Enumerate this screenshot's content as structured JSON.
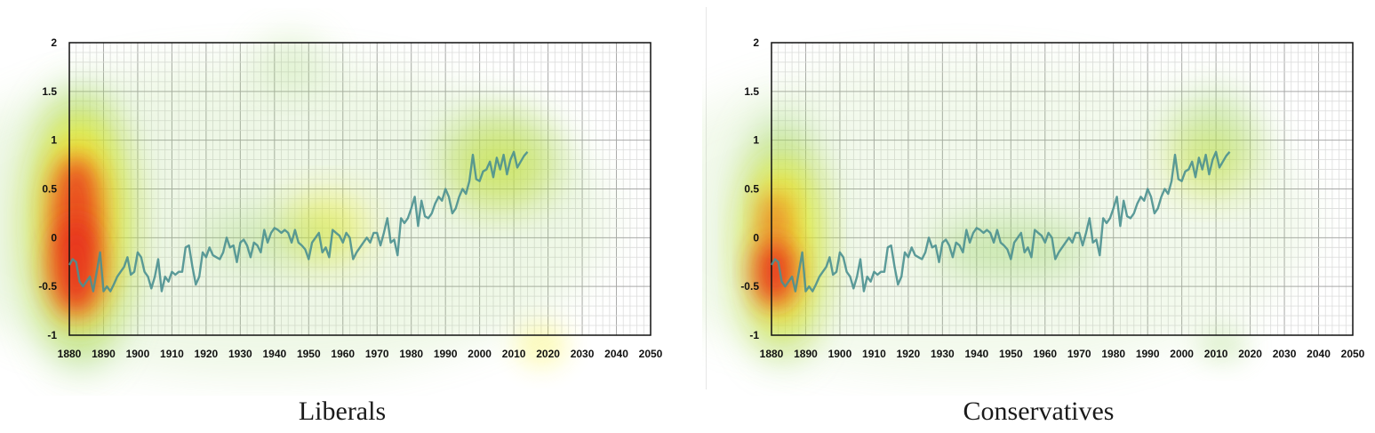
{
  "chart_data": [
    {
      "type": "line",
      "caption": "Liberals",
      "xlim": [
        1880,
        2050
      ],
      "ylim": [
        -1,
        2
      ],
      "xticks": [
        "1880",
        "1890",
        "1900",
        "1910",
        "1920",
        "1930",
        "1940",
        "1950",
        "1960",
        "1970",
        "1980",
        "1990",
        "2000",
        "2010",
        "2020",
        "2030",
        "2040",
        "2050"
      ],
      "yticks": [
        "-1",
        "-0.5",
        "0",
        "0.5",
        "1",
        "1.5",
        "2"
      ],
      "grid": true,
      "overlay": "attention heatmap",
      "line_color": "#4a9090",
      "heatmap_colors": {
        "high": "#e8321e",
        "mid": "#f7f020",
        "low": "#9cd46a"
      },
      "series": [
        {
          "x": [
            1880,
            1881,
            1882,
            1883,
            1884,
            1885,
            1886,
            1887,
            1888,
            1889,
            1890,
            1891,
            1892,
            1893,
            1894,
            1895,
            1896,
            1897,
            1898,
            1899,
            1900,
            1901,
            1902,
            1903,
            1904,
            1905,
            1906,
            1907,
            1908,
            1909,
            1910,
            1911,
            1912,
            1913,
            1914,
            1915,
            1916,
            1917,
            1918,
            1919,
            1920,
            1921,
            1922,
            1923,
            1924,
            1925,
            1926,
            1927,
            1928,
            1929,
            1930,
            1931,
            1932,
            1933,
            1934,
            1935,
            1936,
            1937,
            1938,
            1939,
            1940,
            1941,
            1942,
            1943,
            1944,
            1945,
            1946,
            1947,
            1948,
            1949,
            1950,
            1951,
            1952,
            1953,
            1954,
            1955,
            1956,
            1957,
            1958,
            1959,
            1960,
            1961,
            1962,
            1963,
            1964,
            1965,
            1966,
            1967,
            1968,
            1969,
            1970,
            1971,
            1972,
            1973,
            1974,
            1975,
            1976,
            1977,
            1978,
            1979,
            1980,
            1981,
            1982,
            1983,
            1984,
            1985,
            1986,
            1987,
            1988,
            1989,
            1990,
            1991,
            1992,
            1993,
            1994,
            1995,
            1996,
            1997,
            1998,
            1999,
            2000,
            2001,
            2002,
            2003,
            2004,
            2005,
            2006,
            2007,
            2008,
            2009,
            2010,
            2011,
            2012,
            2013,
            2014
          ],
          "y": [
            -0.28,
            -0.22,
            -0.25,
            -0.45,
            -0.5,
            -0.45,
            -0.4,
            -0.55,
            -0.35,
            -0.15,
            -0.55,
            -0.5,
            -0.55,
            -0.48,
            -0.4,
            -0.35,
            -0.3,
            -0.2,
            -0.38,
            -0.35,
            -0.15,
            -0.2,
            -0.35,
            -0.4,
            -0.52,
            -0.4,
            -0.22,
            -0.55,
            -0.4,
            -0.45,
            -0.35,
            -0.38,
            -0.35,
            -0.35,
            -0.1,
            -0.08,
            -0.3,
            -0.48,
            -0.4,
            -0.15,
            -0.2,
            -0.1,
            -0.18,
            -0.2,
            -0.22,
            -0.15,
            0.0,
            -0.1,
            -0.08,
            -0.25,
            -0.05,
            -0.02,
            -0.08,
            -0.2,
            -0.05,
            -0.08,
            -0.15,
            0.08,
            -0.05,
            0.05,
            0.1,
            0.08,
            0.05,
            0.08,
            0.05,
            -0.05,
            0.08,
            -0.05,
            -0.08,
            -0.12,
            -0.22,
            -0.05,
            0.0,
            0.05,
            -0.15,
            -0.1,
            -0.2,
            0.08,
            0.05,
            0.02,
            -0.05,
            0.05,
            0.0,
            -0.22,
            -0.15,
            -0.1,
            -0.05,
            0.0,
            -0.05,
            0.05,
            0.05,
            -0.08,
            0.05,
            0.2,
            -0.05,
            -0.02,
            -0.18,
            0.2,
            0.15,
            0.2,
            0.3,
            0.42,
            0.12,
            0.38,
            0.22,
            0.2,
            0.25,
            0.35,
            0.42,
            0.38,
            0.5,
            0.42,
            0.25,
            0.3,
            0.42,
            0.5,
            0.45,
            0.58,
            0.85,
            0.6,
            0.58,
            0.68,
            0.7,
            0.78,
            0.62,
            0.82,
            0.7,
            0.85,
            0.65,
            0.8,
            0.88,
            0.72,
            0.78,
            0.84,
            0.88
          ]
        }
      ]
    },
    {
      "type": "line",
      "caption": "Conservatives",
      "xlim": [
        1880,
        2050
      ],
      "ylim": [
        -1,
        2
      ],
      "xticks": [
        "1880",
        "1890",
        "1900",
        "1910",
        "1920",
        "1930",
        "1940",
        "1950",
        "1960",
        "1970",
        "1980",
        "1990",
        "2000",
        "2010",
        "2020",
        "2030",
        "2040",
        "2050"
      ],
      "yticks": [
        "-1",
        "-0.5",
        "0",
        "0.5",
        "1",
        "1.5",
        "2"
      ],
      "grid": true,
      "overlay": "attention heatmap",
      "line_color": "#4a9090",
      "heatmap_colors": {
        "high": "#e8321e",
        "mid": "#f7f020",
        "low": "#9cd46a"
      },
      "series": [
        {
          "x": [
            1880,
            1881,
            1882,
            1883,
            1884,
            1885,
            1886,
            1887,
            1888,
            1889,
            1890,
            1891,
            1892,
            1893,
            1894,
            1895,
            1896,
            1897,
            1898,
            1899,
            1900,
            1901,
            1902,
            1903,
            1904,
            1905,
            1906,
            1907,
            1908,
            1909,
            1910,
            1911,
            1912,
            1913,
            1914,
            1915,
            1916,
            1917,
            1918,
            1919,
            1920,
            1921,
            1922,
            1923,
            1924,
            1925,
            1926,
            1927,
            1928,
            1929,
            1930,
            1931,
            1932,
            1933,
            1934,
            1935,
            1936,
            1937,
            1938,
            1939,
            1940,
            1941,
            1942,
            1943,
            1944,
            1945,
            1946,
            1947,
            1948,
            1949,
            1950,
            1951,
            1952,
            1953,
            1954,
            1955,
            1956,
            1957,
            1958,
            1959,
            1960,
            1961,
            1962,
            1963,
            1964,
            1965,
            1966,
            1967,
            1968,
            1969,
            1970,
            1971,
            1972,
            1973,
            1974,
            1975,
            1976,
            1977,
            1978,
            1979,
            1980,
            1981,
            1982,
            1983,
            1984,
            1985,
            1986,
            1987,
            1988,
            1989,
            1990,
            1991,
            1992,
            1993,
            1994,
            1995,
            1996,
            1997,
            1998,
            1999,
            2000,
            2001,
            2002,
            2003,
            2004,
            2005,
            2006,
            2007,
            2008,
            2009,
            2010,
            2011,
            2012,
            2013,
            2014
          ],
          "y": [
            -0.28,
            -0.22,
            -0.25,
            -0.45,
            -0.5,
            -0.45,
            -0.4,
            -0.55,
            -0.35,
            -0.15,
            -0.55,
            -0.5,
            -0.55,
            -0.48,
            -0.4,
            -0.35,
            -0.3,
            -0.2,
            -0.38,
            -0.35,
            -0.15,
            -0.2,
            -0.35,
            -0.4,
            -0.52,
            -0.4,
            -0.22,
            -0.55,
            -0.4,
            -0.45,
            -0.35,
            -0.38,
            -0.35,
            -0.35,
            -0.1,
            -0.08,
            -0.3,
            -0.48,
            -0.4,
            -0.15,
            -0.2,
            -0.1,
            -0.18,
            -0.2,
            -0.22,
            -0.15,
            0.0,
            -0.1,
            -0.08,
            -0.25,
            -0.05,
            -0.02,
            -0.08,
            -0.2,
            -0.05,
            -0.08,
            -0.15,
            0.08,
            -0.05,
            0.05,
            0.1,
            0.08,
            0.05,
            0.08,
            0.05,
            -0.05,
            0.08,
            -0.05,
            -0.08,
            -0.12,
            -0.22,
            -0.05,
            0.0,
            0.05,
            -0.15,
            -0.1,
            -0.2,
            0.08,
            0.05,
            0.02,
            -0.05,
            0.05,
            0.0,
            -0.22,
            -0.15,
            -0.1,
            -0.05,
            0.0,
            -0.05,
            0.05,
            0.05,
            -0.08,
            0.05,
            0.2,
            -0.05,
            -0.02,
            -0.18,
            0.2,
            0.15,
            0.2,
            0.3,
            0.42,
            0.12,
            0.38,
            0.22,
            0.2,
            0.25,
            0.35,
            0.42,
            0.38,
            0.5,
            0.42,
            0.25,
            0.3,
            0.42,
            0.5,
            0.45,
            0.58,
            0.85,
            0.6,
            0.58,
            0.68,
            0.7,
            0.78,
            0.62,
            0.82,
            0.7,
            0.85,
            0.65,
            0.8,
            0.88,
            0.72,
            0.78,
            0.84,
            0.88
          ]
        }
      ]
    }
  ]
}
